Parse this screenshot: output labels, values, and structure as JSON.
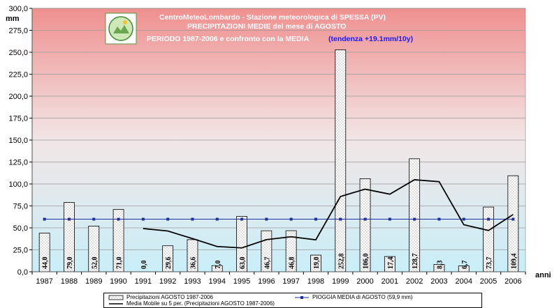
{
  "chart_data": {
    "type": "bar",
    "title_lines": [
      "CentroMeteoLombardo - Stazione meteorologica di SPESSA (PV)",
      "PRECIPITAZIONI MEDIE del mese di AGOSTO",
      "PERIODO 1987-2006 e confronto con la MEDIA"
    ],
    "trend_note": "(tendenza +19.1mm/10y)",
    "ylabel": "mm",
    "xlabel": "anni",
    "ylim": [
      0,
      300
    ],
    "yticks": [
      "0,0",
      "25,0",
      "50,0",
      "75,0",
      "100,0",
      "125,0",
      "150,0",
      "175,0",
      "200,0",
      "225,0",
      "250,0",
      "275,0",
      "300,0"
    ],
    "categories": [
      "1987",
      "1988",
      "1989",
      "1990",
      "1991",
      "1992",
      "1993",
      "1994",
      "1995",
      "1996",
      "1997",
      "1998",
      "1999",
      "2000",
      "2001",
      "2002",
      "2003",
      "2004",
      "2005",
      "2006"
    ],
    "series": [
      {
        "name": "Precipitazioni AGOSTO 1987-2006",
        "kind": "bar",
        "values": [
          44.0,
          79.0,
          52.0,
          71.0,
          0.0,
          29.6,
          36.6,
          7.0,
          63.0,
          46.7,
          46.8,
          19.0,
          252.8,
          106.0,
          17.4,
          128.7,
          8.3,
          6.7,
          73.7,
          109.4
        ],
        "labels": [
          "44,0",
          "79,0",
          "52,0",
          "71,0",
          "0,0",
          "29,6",
          "36,6",
          "7,0",
          "63,0",
          "46,7",
          "46,8",
          "19,0",
          "252,8",
          "106,0",
          "17,4",
          "128,7",
          "8,3",
          "6,7",
          "73,7",
          "109,4"
        ]
      },
      {
        "name": "PIOGGIA MEDIA di AGOSTO (59,9 mm)",
        "kind": "line-markers",
        "color": "#1f2fa0",
        "values": [
          59.9,
          59.9,
          59.9,
          59.9,
          59.9,
          59.9,
          59.9,
          59.9,
          59.9,
          59.9,
          59.9,
          59.9,
          59.9,
          59.9,
          59.9,
          59.9,
          59.9,
          59.9,
          59.9,
          59.9
        ]
      },
      {
        "name": "Media Mobile su 5 per. (Precipitazioni AGOSTO 1987-2006)",
        "kind": "line",
        "color": "#000000",
        "values": [
          null,
          null,
          null,
          null,
          49.2,
          46.4,
          37.8,
          28.8,
          27.2,
          36.6,
          39.9,
          36.4,
          85.7,
          94.1,
          88.4,
          104.8,
          102.6,
          53.6,
          47.0,
          65.2
        ]
      }
    ],
    "colors": {
      "bg_top": "#f09090",
      "bg_mid": "#f2e6e6",
      "bg_bottom": "#c8eef8",
      "title": "#ffffff",
      "trend": "#1a1aff"
    },
    "grid": true
  }
}
